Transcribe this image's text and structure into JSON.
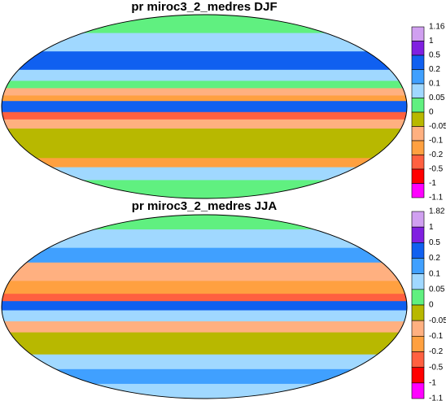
{
  "panels": [
    {
      "title": "pr miroc3_2_medres DJF",
      "colorbar": {
        "labels": [
          "1.16",
          "1",
          "0.5",
          "0.2",
          "0.1",
          "0.05",
          "0",
          "-0.05",
          "-0.1",
          "-0.2",
          "-0.5",
          "-1",
          "-1.1"
        ],
        "colors": [
          "#d0a0f0",
          "#8020e0",
          "#1060f0",
          "#40a0ff",
          "#a0d8ff",
          "#60f080",
          "#b8b800",
          "#ffb080",
          "#ffa040",
          "#ff6040",
          "#ff0000",
          "#ff00ff"
        ]
      }
    },
    {
      "title": "pr miroc3_2_medres JJA",
      "colorbar": {
        "labels": [
          "1.82",
          "1",
          "0.5",
          "0.2",
          "0.1",
          "0.05",
          "0",
          "-0.05",
          "-0.1",
          "-0.2",
          "-0.5",
          "-1",
          "-1.1"
        ],
        "colors": [
          "#d0a0f0",
          "#8020e0",
          "#1060f0",
          "#40a0ff",
          "#a0d8ff",
          "#60f080",
          "#b8b800",
          "#ffb080",
          "#ffa040",
          "#ff6040",
          "#ff0000",
          "#ff00ff"
        ]
      }
    }
  ]
}
